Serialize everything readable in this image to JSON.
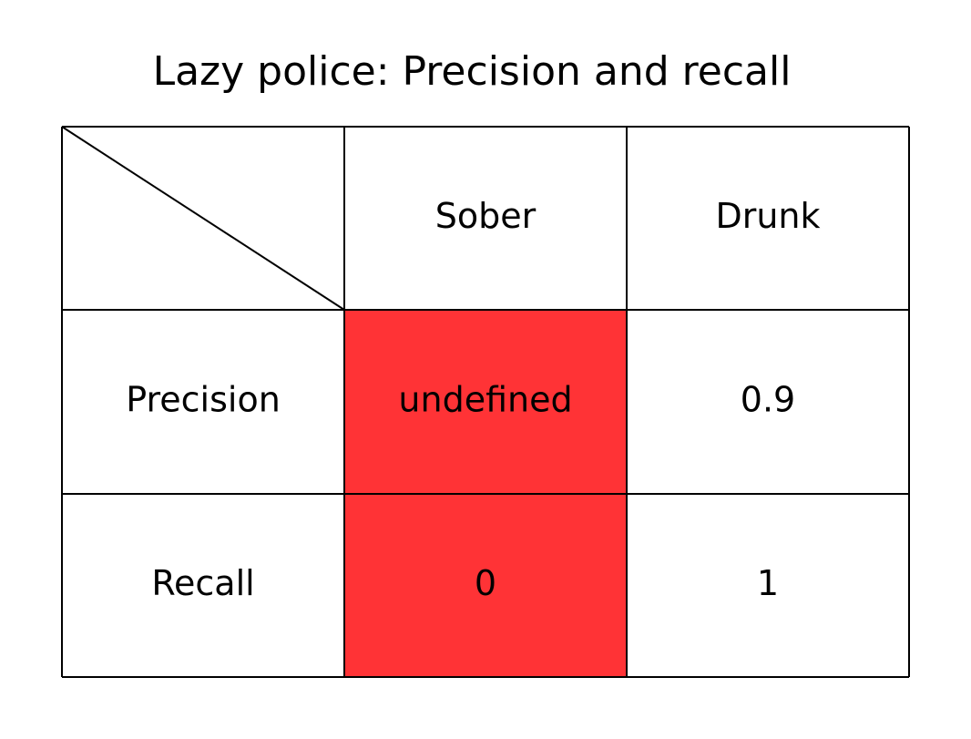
{
  "chart_data": {
    "type": "table",
    "title": "Lazy police: Precision and recall",
    "columns": [
      "Sober",
      "Drunk"
    ],
    "rows": [
      {
        "label": "Precision",
        "values": [
          "undefined",
          "0.9"
        ]
      },
      {
        "label": "Recall",
        "values": [
          "0",
          "1"
        ]
      }
    ],
    "highlight_column": "Sober",
    "colors": {
      "highlight": "#ff3336",
      "line": "#000000",
      "background": "#ffffff"
    }
  }
}
